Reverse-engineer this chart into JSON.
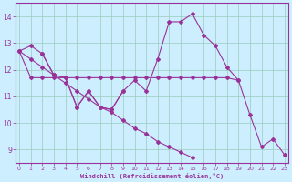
{
  "xlabel": "Windchill (Refroidissement éolien,°C)",
  "bg_color": "#cceeff",
  "line_color": "#993399",
  "grid_color": "#99ccbb",
  "hours": [
    0,
    1,
    2,
    3,
    4,
    5,
    6,
    7,
    8,
    9,
    10,
    11,
    12,
    13,
    14,
    15,
    16,
    17,
    18,
    19,
    20,
    21,
    22,
    23
  ],
  "line_peak": [
    12.7,
    12.9,
    12.6,
    11.8,
    11.7,
    10.6,
    11.2,
    10.6,
    10.5,
    11.2,
    11.6,
    11.2,
    12.4,
    13.8,
    13.8,
    14.1,
    13.3,
    12.9,
    12.1,
    11.6,
    10.3,
    9.1,
    9.4,
    8.8
  ],
  "line_flat": [
    12.7,
    11.7,
    11.7,
    11.7,
    11.7,
    11.7,
    11.7,
    11.7,
    11.7,
    11.7,
    11.7,
    11.7,
    11.7,
    11.7,
    11.7,
    11.7,
    11.7,
    11.7,
    11.7,
    11.6,
    null,
    null,
    null,
    null
  ],
  "line_diag": [
    12.7,
    12.4,
    12.1,
    11.8,
    11.5,
    11.2,
    10.9,
    10.6,
    10.4,
    10.1,
    9.8,
    9.6,
    9.3,
    9.1,
    8.9,
    8.7,
    null,
    null,
    null,
    null,
    null,
    null,
    null,
    null
  ],
  "line_zigzag": [
    null,
    null,
    12.6,
    11.8,
    11.7,
    10.6,
    11.2,
    10.6,
    10.5,
    11.2,
    null,
    null,
    null,
    null,
    null,
    null,
    null,
    null,
    null,
    null,
    null,
    null,
    null,
    null
  ],
  "ylim": [
    8.5,
    14.5
  ],
  "yticks": [
    9,
    10,
    11,
    12,
    13,
    14
  ],
  "xticks": [
    0,
    1,
    2,
    3,
    4,
    5,
    6,
    7,
    8,
    9,
    10,
    11,
    12,
    13,
    14,
    15,
    16,
    17,
    18,
    19,
    20,
    21,
    22,
    23
  ]
}
